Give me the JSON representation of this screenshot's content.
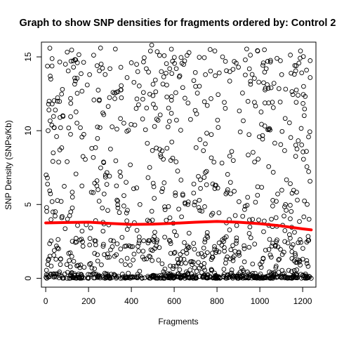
{
  "chart_data": {
    "type": "scatter",
    "title": "Graph to show SNP densities for fragments ordered by: Control 2",
    "xlabel": "Fragments",
    "ylabel": "SNP Density (SNPs/Kb)",
    "xlim": [
      -20,
      1262
    ],
    "ylim": [
      -0.6,
      16.0
    ],
    "x_ticks": [
      0,
      200,
      400,
      600,
      800,
      1000,
      1200
    ],
    "y_ticks": [
      0,
      5,
      10,
      15
    ],
    "grid": false,
    "point_count_approx": 1240,
    "point_color": "#000000",
    "point_shape": "open-circle",
    "sample_points": [
      [
        2,
        7.0
      ],
      [
        8,
        6.8
      ],
      [
        11,
        10.0
      ],
      [
        13,
        11.8
      ],
      [
        16,
        12.0
      ],
      [
        21,
        13.7
      ],
      [
        24,
        13.5
      ],
      [
        35,
        8.5
      ],
      [
        40,
        10.2
      ],
      [
        45,
        11.4
      ],
      [
        55,
        12.0
      ],
      [
        66,
        8.7
      ],
      [
        78,
        12.8
      ],
      [
        92,
        14.5
      ],
      [
        130,
        14.3
      ],
      [
        148,
        14.6
      ],
      [
        162,
        10.2
      ],
      [
        205,
        13.8
      ],
      [
        240,
        14.4
      ],
      [
        256,
        15.6
      ],
      [
        300,
        14.2
      ],
      [
        330,
        12.6
      ],
      [
        380,
        13.6
      ],
      [
        400,
        14.6
      ],
      [
        430,
        14.0
      ],
      [
        470,
        14.2
      ],
      [
        495,
        15.8
      ],
      [
        540,
        14.0
      ],
      [
        562,
        13.9
      ],
      [
        610,
        14.2
      ],
      [
        660,
        15.1
      ],
      [
        700,
        13.0
      ],
      [
        746,
        13.8
      ],
      [
        768,
        15.5
      ],
      [
        790,
        15.4
      ],
      [
        826,
        15.0
      ],
      [
        860,
        14.0
      ],
      [
        900,
        14.3
      ],
      [
        932,
        14.8
      ],
      [
        990,
        15.4
      ],
      [
        1030,
        14.2
      ],
      [
        1080,
        14.9
      ],
      [
        1102,
        13.8
      ],
      [
        1146,
        13.9
      ],
      [
        1170,
        14.4
      ],
      [
        1190,
        15.4
      ],
      [
        1218,
        14.1
      ],
      [
        1235,
        13.6
      ],
      [
        30,
        5.2
      ],
      [
        75,
        4.1
      ],
      [
        125,
        5.5
      ],
      [
        170,
        3.2
      ],
      [
        222,
        5.8
      ],
      [
        290,
        4.6
      ],
      [
        365,
        4.9
      ],
      [
        440,
        5.0
      ],
      [
        505,
        6.2
      ],
      [
        580,
        4.1
      ],
      [
        640,
        5.7
      ],
      [
        720,
        4.6
      ],
      [
        780,
        4.4
      ],
      [
        850,
        6.0
      ],
      [
        920,
        4.2
      ],
      [
        990,
        6.2
      ],
      [
        1060,
        4.9
      ],
      [
        1120,
        5.0
      ],
      [
        1175,
        5.3
      ],
      [
        1230,
        4.0
      ],
      [
        20,
        1.5
      ],
      [
        60,
        2.0
      ],
      [
        110,
        1.2
      ],
      [
        160,
        2.6
      ],
      [
        210,
        1.0
      ],
      [
        270,
        2.3
      ],
      [
        330,
        1.6
      ],
      [
        390,
        2.2
      ],
      [
        460,
        1.3
      ],
      [
        520,
        2.6
      ],
      [
        600,
        1.7
      ],
      [
        670,
        2.1
      ],
      [
        740,
        1.0
      ],
      [
        810,
        2.4
      ],
      [
        880,
        1.5
      ],
      [
        950,
        2.1
      ],
      [
        1010,
        1.1
      ],
      [
        1080,
        2.6
      ],
      [
        1150,
        1.8
      ],
      [
        1220,
        1.0
      ],
      [
        5,
        0.0
      ],
      [
        50,
        0.1
      ],
      [
        100,
        0.0
      ],
      [
        150,
        0.2
      ],
      [
        200,
        0.0
      ],
      [
        250,
        0.1
      ],
      [
        300,
        0.0
      ],
      [
        350,
        0.0
      ],
      [
        400,
        0.1
      ],
      [
        450,
        0.0
      ],
      [
        500,
        0.2
      ],
      [
        550,
        0.0
      ],
      [
        600,
        0.1
      ],
      [
        650,
        0.0
      ],
      [
        700,
        0.0
      ],
      [
        750,
        0.1
      ],
      [
        800,
        0.0
      ],
      [
        850,
        0.2
      ],
      [
        900,
        0.0
      ],
      [
        950,
        0.1
      ],
      [
        1000,
        0.0
      ],
      [
        1050,
        0.0
      ],
      [
        1100,
        0.1
      ],
      [
        1150,
        0.0
      ],
      [
        1200,
        0.2
      ],
      [
        1240,
        0.0
      ]
    ],
    "trend": {
      "color": "#ff0000",
      "x": [
        0,
        100,
        200,
        300,
        400,
        500,
        600,
        700,
        800,
        900,
        1000,
        1100,
        1200,
        1240
      ],
      "y": [
        3.75,
        3.78,
        3.8,
        3.72,
        3.65,
        3.67,
        3.73,
        3.8,
        3.85,
        3.8,
        3.7,
        3.55,
        3.35,
        3.28
      ]
    }
  }
}
